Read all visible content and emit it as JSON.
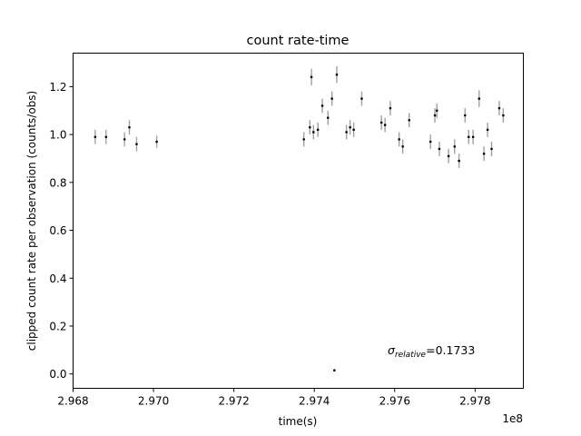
{
  "chart_data": {
    "type": "scatter",
    "title": "count rate-time",
    "xlabel": "time(s)",
    "ylabel": "clipped count rate per observation (counts/obs)",
    "x_offset_label": "1e8",
    "annotation": {
      "symbol": "σ",
      "subscript": "relative",
      "text": "=0.1733"
    },
    "xlim": [
      2.968,
      2.9792
    ],
    "ylim": [
      -0.06,
      1.34
    ],
    "x_ticks": [
      2.968,
      2.97,
      2.972,
      2.974,
      2.976,
      2.978
    ],
    "x_tick_labels": [
      "2.968",
      "2.970",
      "2.972",
      "2.974",
      "2.976",
      "2.978"
    ],
    "y_ticks": [
      0.0,
      0.2,
      0.4,
      0.6,
      0.8,
      1.0,
      1.2
    ],
    "y_tick_labels": [
      "0.0",
      "0.2",
      "0.4",
      "0.6",
      "0.8",
      "1.0",
      "1.2"
    ],
    "grid": false,
    "colors": {
      "point": "#000000",
      "errorbar": "#a0a0a0"
    },
    "series": [
      {
        "x": [
          2.96855,
          2.96882,
          2.96928,
          2.9694,
          2.96958,
          2.97008,
          2.97374,
          2.97389,
          2.97393,
          2.97398,
          2.97409,
          2.9742,
          2.97434,
          2.97444,
          2.9745,
          2.97456,
          2.9748,
          2.97489,
          2.97498,
          2.97518,
          2.97567,
          2.97576,
          2.97589,
          2.97611,
          2.9762,
          2.97636,
          2.97689,
          2.977,
          2.97705,
          2.97711,
          2.97734,
          2.97749,
          2.9776,
          2.97775,
          2.97784,
          2.97795,
          2.9781,
          2.97822,
          2.97831,
          2.97841,
          2.9786,
          2.9787
        ],
        "y": [
          0.99,
          0.99,
          0.98,
          1.03,
          0.96,
          0.97,
          0.98,
          1.03,
          1.24,
          1.01,
          1.02,
          1.12,
          1.07,
          1.15,
          0.015,
          1.25,
          1.01,
          1.03,
          1.02,
          1.15,
          1.05,
          1.04,
          1.11,
          0.98,
          0.95,
          1.06,
          0.97,
          1.08,
          1.1,
          0.94,
          0.91,
          0.95,
          0.89,
          1.08,
          0.99,
          0.99,
          1.15,
          0.92,
          1.02,
          0.94,
          1.11,
          1.08
        ],
        "yerr": [
          0.03,
          0.03,
          0.03,
          0.03,
          0.03,
          0.025,
          0.03,
          0.03,
          0.035,
          0.03,
          0.03,
          0.03,
          0.03,
          0.03,
          0.005,
          0.035,
          0.03,
          0.03,
          0.03,
          0.03,
          0.03,
          0.03,
          0.03,
          0.03,
          0.03,
          0.03,
          0.03,
          0.03,
          0.03,
          0.03,
          0.03,
          0.03,
          0.03,
          0.03,
          0.03,
          0.03,
          0.035,
          0.03,
          0.03,
          0.03,
          0.03,
          0.03
        ]
      }
    ]
  }
}
